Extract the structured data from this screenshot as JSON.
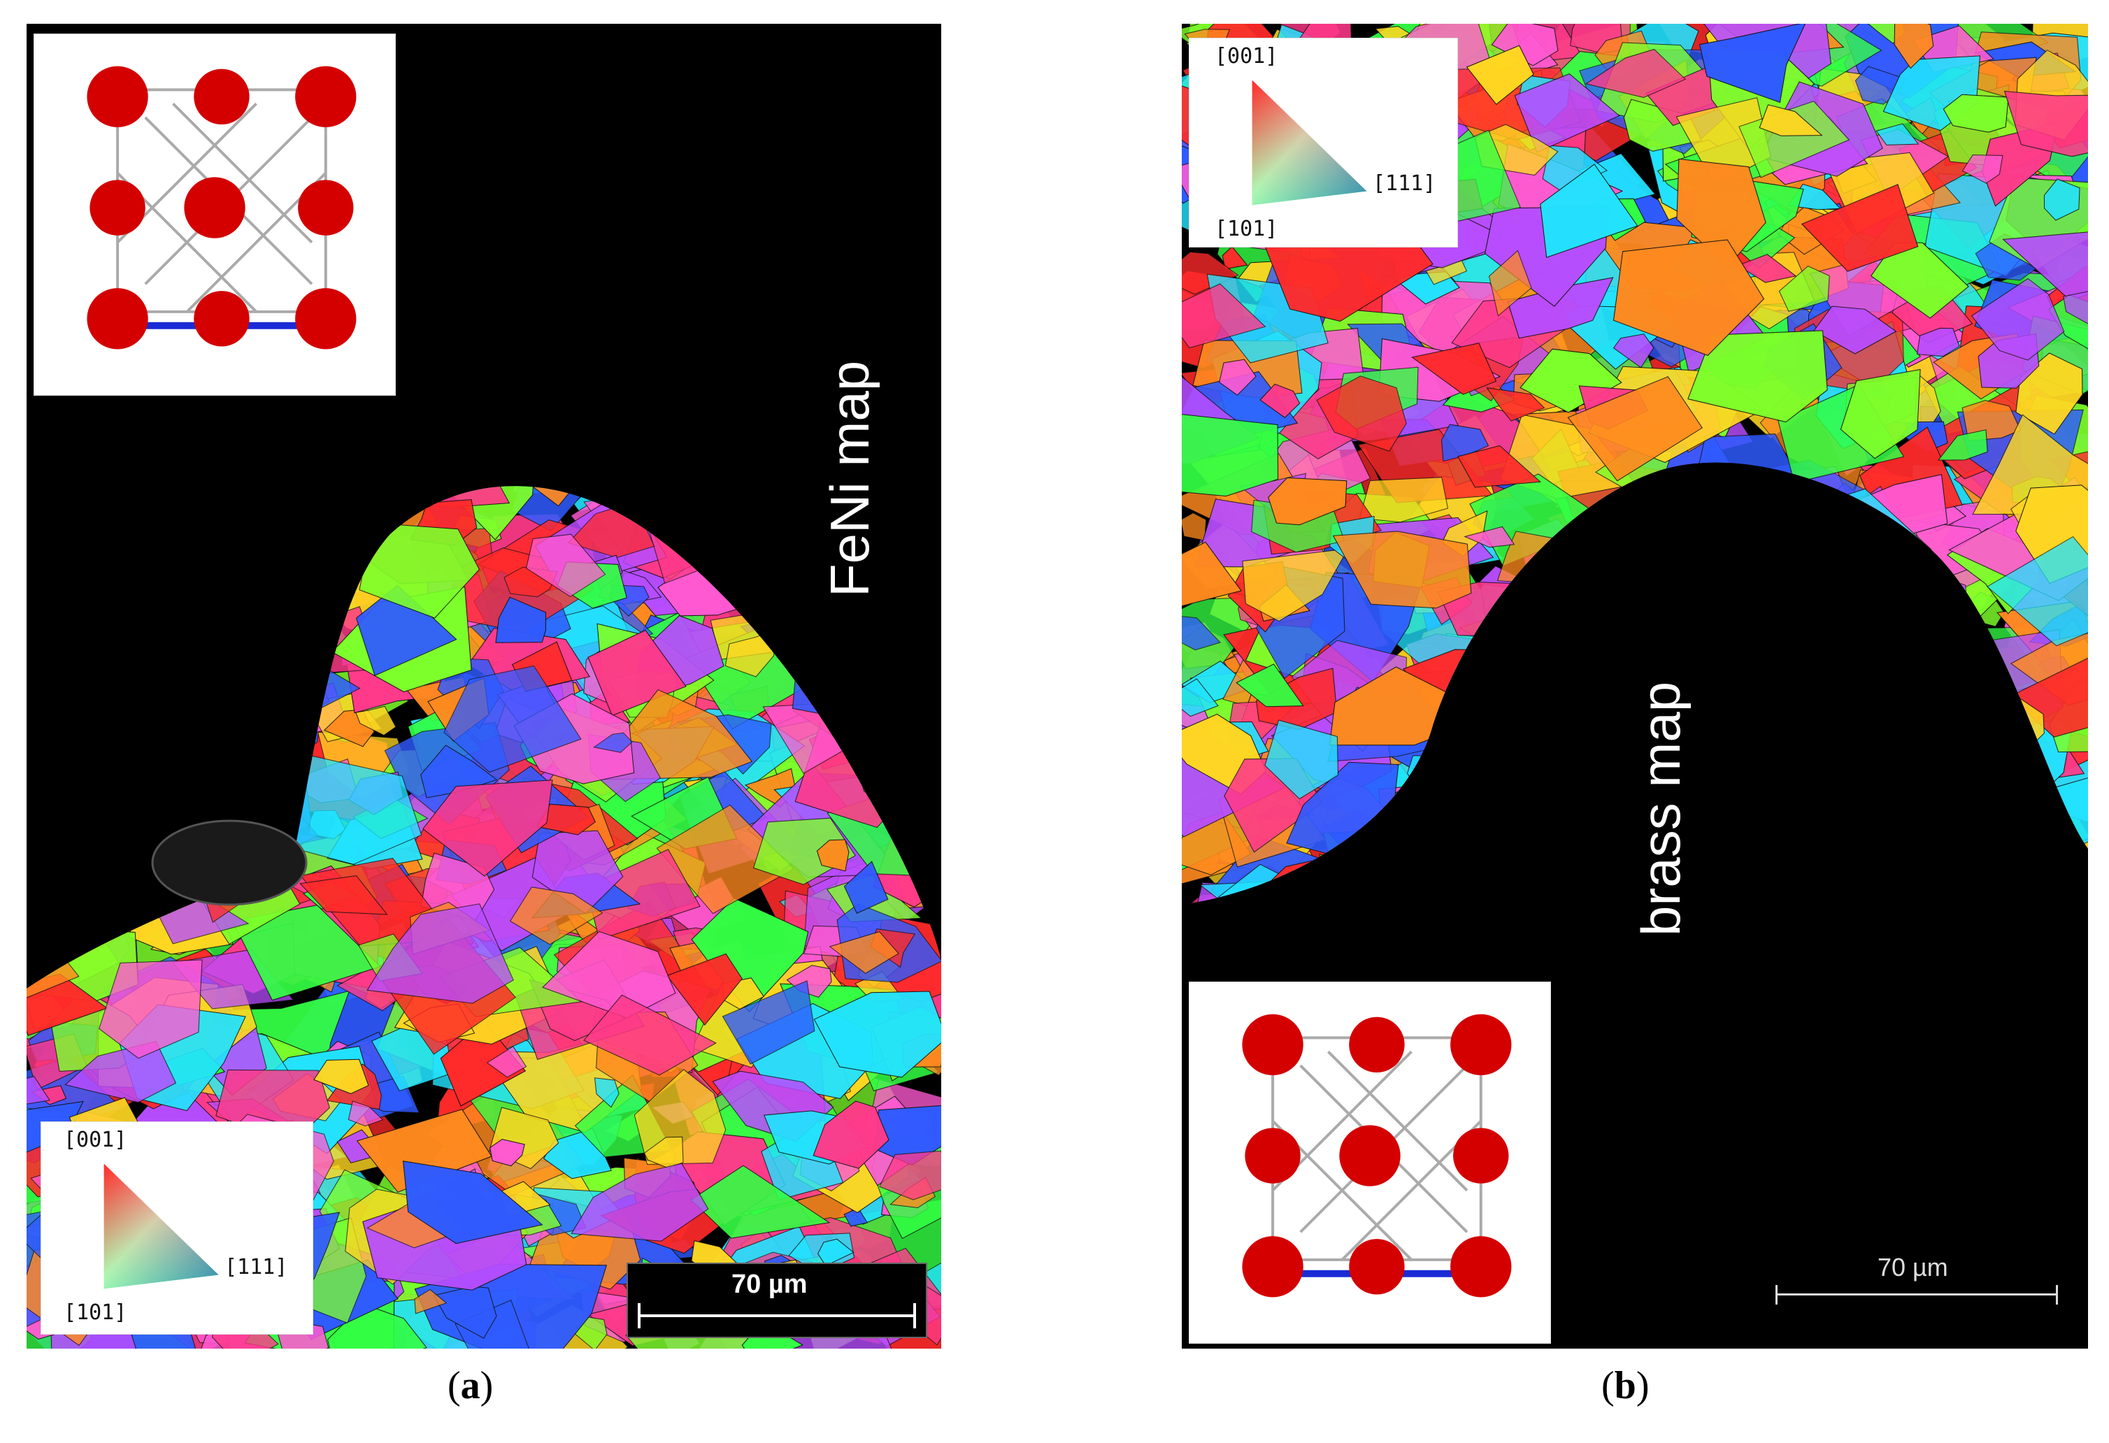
{
  "panels": [
    {
      "id": "a",
      "map_label": "FeNi map",
      "caption_letter": "a",
      "caption_open": "(",
      "caption_close": ")",
      "scale_bar": "70 µm",
      "ipf": {
        "top": "[001]",
        "right": "[111]",
        "bottom": "[101]"
      }
    },
    {
      "id": "b",
      "map_label": "brass map",
      "caption_letter": "b",
      "caption_open": "(",
      "caption_close": ")",
      "scale_bar": "70 µm",
      "ipf": {
        "top": "[001]",
        "right": "[111]",
        "bottom": "[101]"
      }
    }
  ],
  "colors": {
    "background": "#000000",
    "atom": "#d40000",
    "bond_highlight": "#1a2bd6",
    "ipf_red": "#ff2020",
    "ipf_green": "#20ff40",
    "ipf_blue": "#2040ff"
  },
  "icons": [
    "fcc-unit-cell-icon",
    "ipf-color-triangle-icon"
  ]
}
